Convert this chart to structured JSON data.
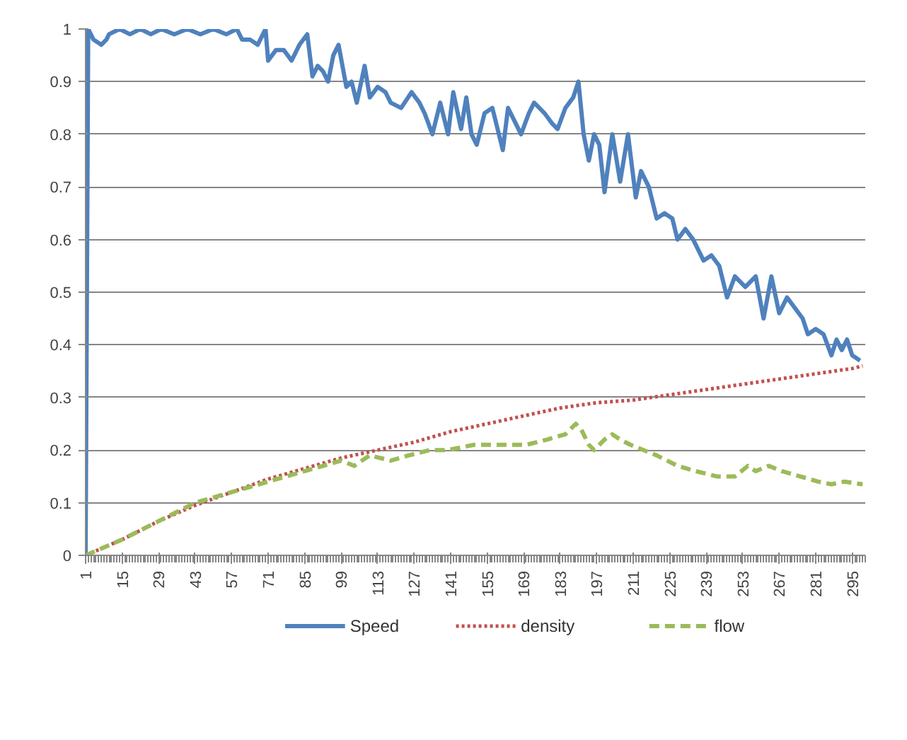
{
  "chart_data": {
    "type": "line",
    "xlim": [
      1,
      300
    ],
    "ylim": [
      0,
      1
    ],
    "xticks": [
      1,
      15,
      29,
      43,
      57,
      71,
      85,
      99,
      113,
      127,
      141,
      155,
      169,
      183,
      197,
      211,
      225,
      239,
      253,
      267,
      281,
      295
    ],
    "yticks": [
      0,
      0.1,
      0.2,
      0.3,
      0.4,
      0.5,
      0.6,
      0.7,
      0.8,
      0.9,
      1
    ],
    "grid": "y",
    "legend": "bottom",
    "series": [
      {
        "name": "Speed",
        "color": "#4f81bd",
        "line_style": "solid",
        "x": [
          1,
          2,
          4,
          7,
          9,
          10,
          14,
          18,
          22,
          26,
          30,
          35,
          40,
          45,
          50,
          55,
          59,
          61,
          64,
          67,
          70,
          71,
          74,
          77,
          80,
          83,
          86,
          88,
          90,
          92,
          94,
          96,
          98,
          101,
          103,
          105,
          108,
          110,
          113,
          116,
          118,
          122,
          126,
          129,
          131,
          134,
          137,
          140,
          142,
          145,
          147,
          149,
          151,
          154,
          157,
          161,
          163,
          166,
          168,
          171,
          173,
          177,
          180,
          182,
          185,
          188,
          190,
          192,
          194,
          196,
          198,
          200,
          203,
          206,
          209,
          212,
          214,
          217,
          220,
          223,
          226,
          228,
          231,
          234,
          238,
          241,
          244,
          247,
          250,
          254,
          258,
          261,
          264,
          267,
          270,
          273,
          276,
          278,
          281,
          284,
          287,
          289,
          291,
          293,
          295,
          298
        ],
        "values": [
          0,
          1,
          0.98,
          0.97,
          0.98,
          0.99,
          1,
          0.99,
          1,
          0.99,
          1,
          0.99,
          1,
          0.99,
          1,
          0.99,
          1,
          0.98,
          0.98,
          0.97,
          1,
          0.94,
          0.96,
          0.96,
          0.94,
          0.97,
          0.99,
          0.91,
          0.93,
          0.92,
          0.9,
          0.95,
          0.97,
          0.89,
          0.9,
          0.86,
          0.93,
          0.87,
          0.89,
          0.88,
          0.86,
          0.85,
          0.88,
          0.86,
          0.84,
          0.8,
          0.86,
          0.8,
          0.88,
          0.81,
          0.87,
          0.8,
          0.78,
          0.84,
          0.85,
          0.77,
          0.85,
          0.82,
          0.8,
          0.84,
          0.86,
          0.84,
          0.82,
          0.81,
          0.85,
          0.87,
          0.9,
          0.8,
          0.75,
          0.8,
          0.78,
          0.69,
          0.8,
          0.71,
          0.8,
          0.68,
          0.73,
          0.7,
          0.64,
          0.65,
          0.64,
          0.6,
          0.62,
          0.6,
          0.56,
          0.57,
          0.55,
          0.49,
          0.53,
          0.51,
          0.53,
          0.45,
          0.53,
          0.46,
          0.49,
          0.47,
          0.45,
          0.42,
          0.43,
          0.42,
          0.38,
          0.41,
          0.39,
          0.41,
          0.38,
          0.37
        ]
      },
      {
        "name": "density",
        "color": "#c0504d",
        "line_style": "dotted",
        "x": [
          1,
          15,
          29,
          43,
          57,
          71,
          85,
          99,
          113,
          127,
          141,
          155,
          169,
          183,
          197,
          211,
          225,
          239,
          253,
          267,
          281,
          295,
          299
        ],
        "values": [
          0,
          0.03,
          0.065,
          0.095,
          0.12,
          0.145,
          0.165,
          0.185,
          0.2,
          0.215,
          0.235,
          0.25,
          0.265,
          0.28,
          0.29,
          0.295,
          0.305,
          0.315,
          0.325,
          0.335,
          0.345,
          0.355,
          0.36
        ]
      },
      {
        "name": "flow",
        "color": "#9bbb59",
        "line_style": "dashed",
        "x": [
          1,
          15,
          29,
          43,
          57,
          71,
          85,
          92,
          99,
          104,
          110,
          118,
          125,
          133,
          140,
          150,
          160,
          170,
          178,
          185,
          189,
          191,
          194,
          196,
          200,
          203,
          206,
          210,
          215,
          220,
          228,
          235,
          243,
          250,
          255,
          258,
          263,
          268,
          275,
          282,
          287,
          292,
          299
        ],
        "values": [
          0,
          0.03,
          0.065,
          0.1,
          0.12,
          0.14,
          0.16,
          0.17,
          0.18,
          0.17,
          0.19,
          0.18,
          0.19,
          0.2,
          0.2,
          0.21,
          0.21,
          0.21,
          0.22,
          0.23,
          0.25,
          0.24,
          0.21,
          0.2,
          0.22,
          0.23,
          0.22,
          0.21,
          0.2,
          0.19,
          0.17,
          0.16,
          0.15,
          0.15,
          0.17,
          0.16,
          0.17,
          0.16,
          0.15,
          0.14,
          0.135,
          0.14,
          0.135
        ]
      }
    ]
  }
}
